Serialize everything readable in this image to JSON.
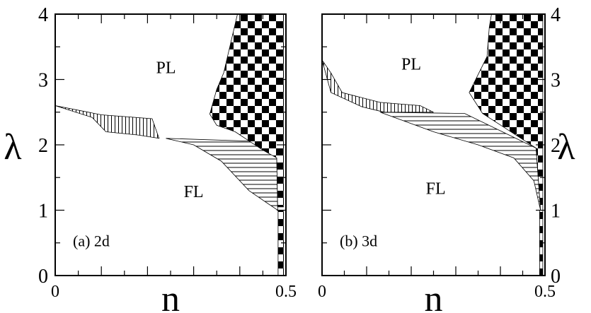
{
  "chart_data": [
    {
      "type": "area",
      "panel_label": "(a) 2d",
      "xlabel": "n",
      "ylabel": "λ",
      "xlim": [
        0,
        0.5
      ],
      "ylim": [
        0,
        4
      ],
      "x_tick_labels": [
        "0",
        "0.5"
      ],
      "y_tick_labels": [
        "0",
        "1",
        "2",
        "3",
        "4"
      ],
      "ylabel_side": "left",
      "region_labels": [
        {
          "text": "PL",
          "x": 0.24,
          "y": 3.1
        },
        {
          "text": "FL",
          "x": 0.3,
          "y": 1.2
        }
      ],
      "regions": [
        {
          "fill": "vertical-stripes",
          "points": [
            [
              0,
              2.6
            ],
            [
              0.1,
              2.46
            ],
            [
              0.21,
              2.4
            ],
            [
              0.225,
              2.1
            ],
            [
              0.18,
              2.15
            ],
            [
              0.11,
              2.2
            ],
            [
              0.08,
              2.42
            ]
          ]
        },
        {
          "fill": "horizontal-stripes",
          "points": [
            [
              0.24,
              2.1
            ],
            [
              0.45,
              2.05
            ],
            [
              0.48,
              1.8
            ],
            [
              0.482,
              1.0
            ],
            [
              0.42,
              1.3
            ],
            [
              0.36,
              1.75
            ],
            [
              0.3,
              2.0
            ]
          ]
        },
        {
          "fill": "checkerboard",
          "points": [
            [
              0.395,
              4.0
            ],
            [
              0.495,
              4.0
            ],
            [
              0.495,
              1.05
            ],
            [
              0.482,
              1.05
            ],
            [
              0.48,
              1.8
            ],
            [
              0.45,
              1.92
            ],
            [
              0.39,
              2.2
            ],
            [
              0.35,
              2.3
            ],
            [
              0.335,
              2.47
            ],
            [
              0.35,
              2.85
            ],
            [
              0.365,
              3.1
            ]
          ]
        },
        {
          "fill": "checkerboard",
          "points": [
            [
              0.483,
              1.0
            ],
            [
              0.495,
              1.0
            ],
            [
              0.495,
              0.0
            ],
            [
              0.483,
              0.0
            ]
          ]
        }
      ]
    },
    {
      "type": "area",
      "panel_label": "(b) 3d",
      "xlabel": "n",
      "ylabel": "λ",
      "xlim": [
        0,
        0.5
      ],
      "ylim": [
        0,
        4
      ],
      "x_tick_labels": [
        "0",
        "0.5"
      ],
      "y_tick_labels": [
        "0",
        "1",
        "2",
        "3",
        "4"
      ],
      "ylabel_side": "right",
      "region_labels": [
        {
          "text": "PL",
          "x": 0.2,
          "y": 3.15
        },
        {
          "text": "FL",
          "x": 0.255,
          "y": 1.25
        }
      ],
      "regions": [
        {
          "fill": "vertical-stripes",
          "points": [
            [
              0,
              3.3
            ],
            [
              0.02,
              3.1
            ],
            [
              0.045,
              2.8
            ],
            [
              0.13,
              2.65
            ],
            [
              0.22,
              2.6
            ],
            [
              0.25,
              2.5
            ],
            [
              0.14,
              2.5
            ],
            [
              0.09,
              2.58
            ],
            [
              0.02,
              2.8
            ],
            [
              0.01,
              3.05
            ]
          ]
        },
        {
          "fill": "horizontal-stripes",
          "points": [
            [
              0.13,
              2.5
            ],
            [
              0.32,
              2.48
            ],
            [
              0.48,
              1.95
            ],
            [
              0.49,
              1.0
            ],
            [
              0.475,
              1.45
            ],
            [
              0.43,
              1.8
            ],
            [
              0.35,
              2.0
            ],
            [
              0.25,
              2.2
            ]
          ]
        },
        {
          "fill": "checkerboard",
          "points": [
            [
              0.38,
              4.0
            ],
            [
              0.495,
              4.0
            ],
            [
              0.495,
              1.0
            ],
            [
              0.49,
              1.0
            ],
            [
              0.48,
              1.95
            ],
            [
              0.36,
              2.48
            ],
            [
              0.33,
              2.8
            ],
            [
              0.37,
              3.35
            ],
            [
              0.375,
              3.8
            ]
          ]
        },
        {
          "fill": "checkerboard",
          "points": [
            [
              0.488,
              1.0
            ],
            [
              0.495,
              1.0
            ],
            [
              0.495,
              0.0
            ],
            [
              0.488,
              0.0
            ]
          ]
        }
      ]
    }
  ]
}
